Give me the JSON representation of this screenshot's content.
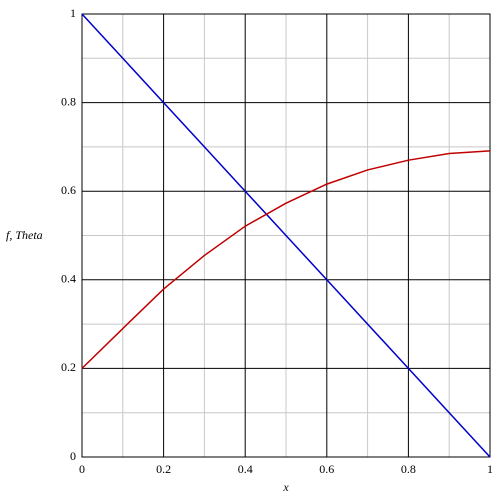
{
  "chart_data": {
    "type": "line",
    "xlabel": "x",
    "ylabel": "f, Theta",
    "x": [
      0,
      0.1,
      0.2,
      0.3,
      0.4,
      0.5,
      0.6,
      0.7,
      0.8,
      0.9,
      1
    ],
    "series": [
      {
        "color": "#0000cc",
        "values": [
          1,
          0.9,
          0.8,
          0.7,
          0.6,
          0.5,
          0.4,
          0.3,
          0.2,
          0.1,
          0
        ]
      },
      {
        "color": "#c00000",
        "values": [
          0.2,
          0.29,
          0.379,
          0.455,
          0.521,
          0.573,
          0.616,
          0.648,
          0.67,
          0.685,
          0.691
        ]
      }
    ],
    "xlim": [
      0,
      1
    ],
    "ylim": [
      0,
      1
    ],
    "xticks": [
      0,
      0.2,
      0.4,
      0.6,
      0.8,
      1
    ],
    "yticks": [
      0,
      0.2,
      0.4,
      0.6,
      0.8,
      1
    ],
    "minor_xticks": [
      0.1,
      0.3,
      0.5,
      0.7,
      0.9
    ],
    "minor_yticks": [
      0.1,
      0.3,
      0.5,
      0.7,
      0.9
    ],
    "grid": true
  }
}
